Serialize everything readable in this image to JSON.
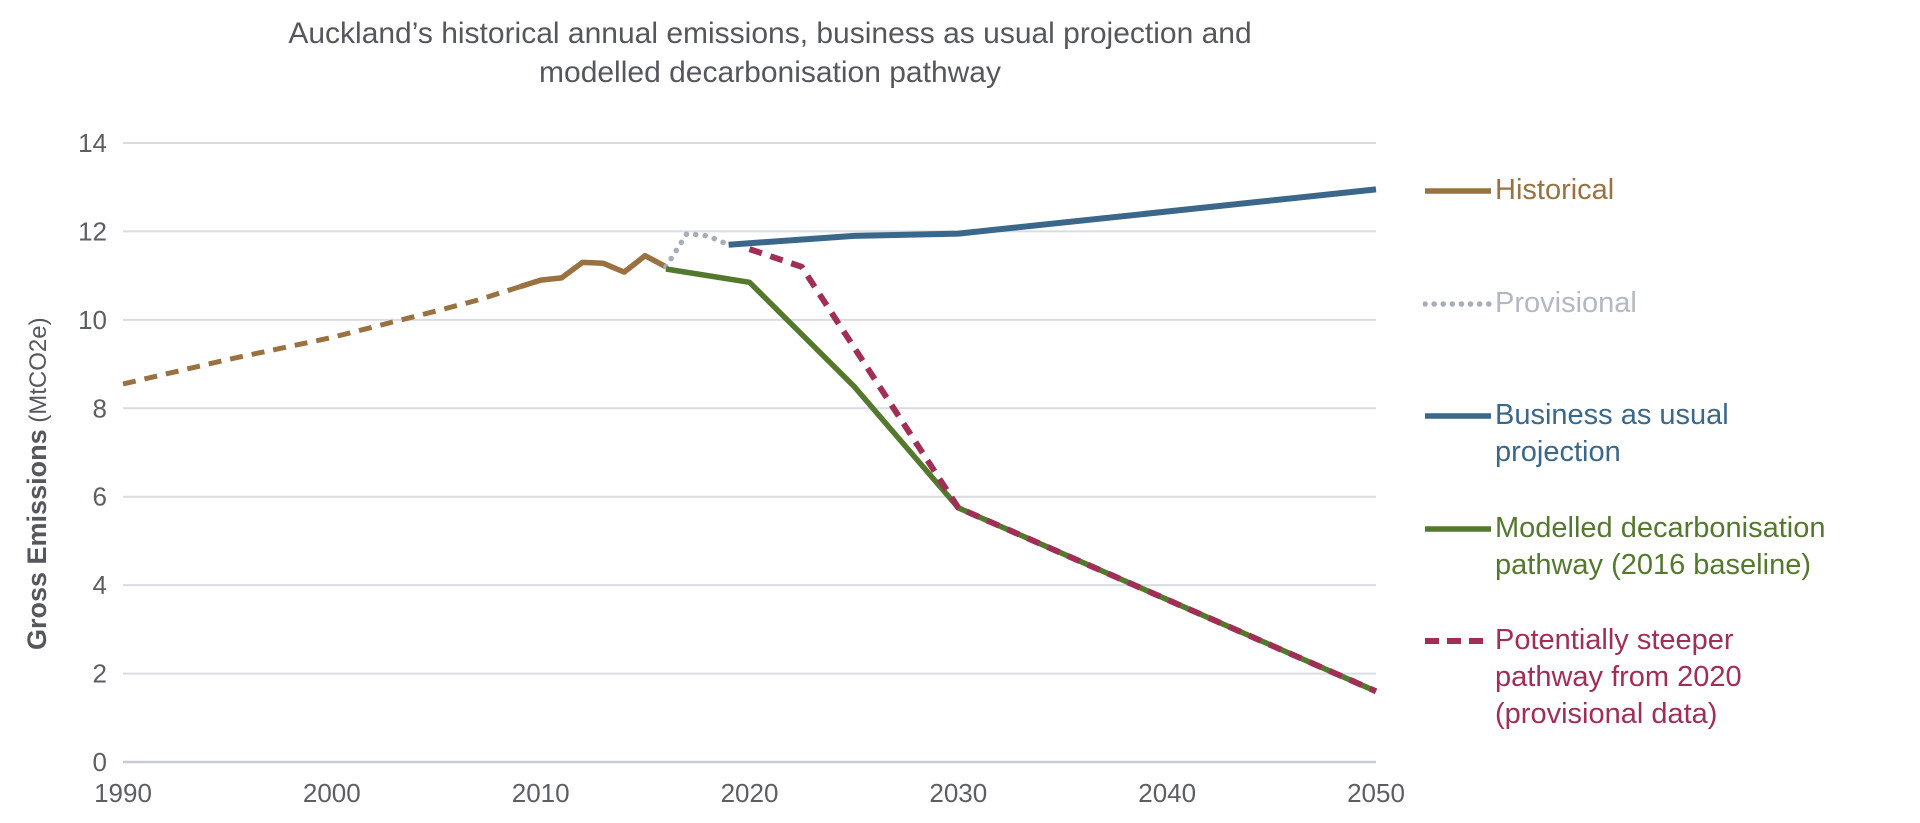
{
  "header": {
    "title_line1": "Auckland’s historical annual emissions, business as usual projection and",
    "title_line2": "modelled decarbonisation pathway"
  },
  "y_axis": {
    "label_bold": "Gross Emissions",
    "label_unit": "(MtCO2e)"
  },
  "colors": {
    "title_text": "#55575c",
    "tick_text": "#5c5e63",
    "gridline": "#d9dce2",
    "axis_line": "#c6cbd3",
    "background": "#ffffff",
    "historical": "#9a7140",
    "provisional": "#a7adb9",
    "provisional_text": "#b3b8c2",
    "bau": "#3a678a",
    "modelled": "#54782e",
    "steeper": "#a02e55"
  },
  "chart_data": {
    "type": "line",
    "title": "Auckland's historical annual emissions, business as usual projection and modelled decarbonisation pathway",
    "xlabel": "",
    "ylabel": "Gross Emissions (MtCO2e)",
    "xlim": [
      1990,
      2050
    ],
    "ylim": [
      0,
      14
    ],
    "x_ticks": [
      1990,
      2000,
      2010,
      2020,
      2030,
      2040,
      2050
    ],
    "y_ticks": [
      0,
      2,
      4,
      6,
      8,
      10,
      12,
      14
    ],
    "grid": "horizontal",
    "legend_position": "right",
    "series": [
      {
        "id": "historical_interpolated",
        "name": "Historical (interpolated, dashed)",
        "color": "#9a7140",
        "line_style": "dashed",
        "width": 5,
        "points": [
          [
            1990,
            8.55
          ],
          [
            1995,
            9.1
          ],
          [
            2000,
            9.6
          ],
          [
            2005,
            10.2
          ],
          [
            2007,
            10.45
          ],
          [
            2009,
            10.75
          ]
        ]
      },
      {
        "id": "historical",
        "name": "Historical",
        "color": "#9a7140",
        "line_style": "solid",
        "width": 5.5,
        "points": [
          [
            2009,
            10.75
          ],
          [
            2010,
            10.9
          ],
          [
            2011,
            10.95
          ],
          [
            2012,
            11.3
          ],
          [
            2013,
            11.28
          ],
          [
            2014,
            11.08
          ],
          [
            2015,
            11.45
          ],
          [
            2016,
            11.2
          ]
        ]
      },
      {
        "id": "provisional",
        "name": "Provisional",
        "color": "#a7adb9",
        "line_style": "dotted",
        "width": 5.5,
        "points": [
          [
            2016,
            11.2
          ],
          [
            2017,
            11.95
          ],
          [
            2018,
            11.9
          ],
          [
            2019,
            11.7
          ]
        ]
      },
      {
        "id": "business_as_usual",
        "name": "Business as usual projection",
        "color": "#3a678a",
        "line_style": "solid",
        "width": 6,
        "points": [
          [
            2019,
            11.7
          ],
          [
            2025,
            11.9
          ],
          [
            2030,
            11.95
          ],
          [
            2040,
            12.45
          ],
          [
            2050,
            12.95
          ]
        ]
      },
      {
        "id": "modelled_pathway",
        "name": "Modelled decarbonisation pathway (2016 baseline)",
        "color": "#54782e",
        "line_style": "solid",
        "width": 5.5,
        "points": [
          [
            2016,
            11.15
          ],
          [
            2018,
            11.0
          ],
          [
            2020,
            10.85
          ],
          [
            2025,
            8.5
          ],
          [
            2030,
            5.75
          ],
          [
            2050,
            1.6
          ]
        ]
      },
      {
        "id": "steeper_pathway",
        "name": "Potentially steeper pathway from 2020 (provisional data)",
        "color": "#a02e55",
        "line_style": "dashed",
        "width": 6,
        "points": [
          [
            2020,
            11.6
          ],
          [
            2022.5,
            11.2
          ],
          [
            2030,
            5.75
          ],
          [
            2050,
            1.6
          ]
        ]
      }
    ]
  },
  "legend": [
    {
      "id": "historical",
      "lines": [
        "Historical"
      ],
      "color": "#9a7140",
      "text_color": "#9a7140",
      "line_style": "solid"
    },
    {
      "id": "provisional",
      "lines": [
        "Provisional"
      ],
      "color": "#a7adb9",
      "text_color": "#b3b8c2",
      "line_style": "dotted"
    },
    {
      "id": "business-as-usual",
      "lines": [
        "Business as usual",
        "projection"
      ],
      "color": "#3a678a",
      "text_color": "#3a678a",
      "line_style": "solid"
    },
    {
      "id": "modelled-pathway",
      "lines": [
        "Modelled decarbonisation",
        "pathway (2016 baseline)"
      ],
      "color": "#54782e",
      "text_color": "#54782e",
      "line_style": "solid"
    },
    {
      "id": "steeper-pathway",
      "lines": [
        "Potentially steeper",
        "pathway from 2020",
        "(provisional data)"
      ],
      "color": "#a02e55",
      "text_color": "#a02e55",
      "line_style": "dashed"
    }
  ]
}
